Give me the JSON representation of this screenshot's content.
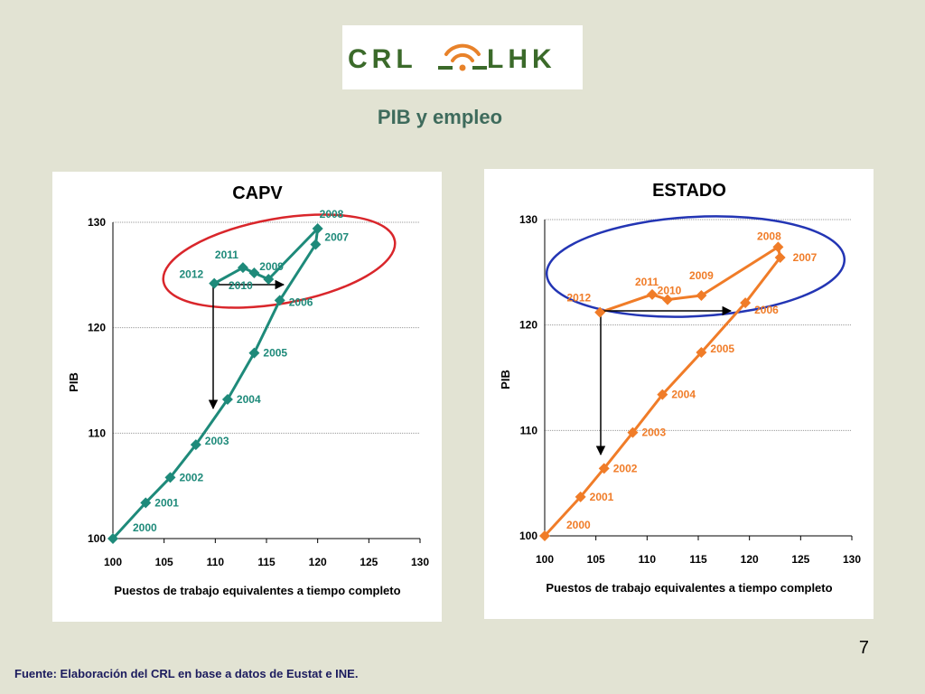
{
  "logo": {
    "text_left": "CRL",
    "text_right": "LHK",
    "colors": {
      "text": "#3b6a2a",
      "accent": "#e8822a"
    }
  },
  "slide_title": "PIB y empleo",
  "page_number": "7",
  "source_note": "Fuente: Elaboración del CRL en base a datos de Eustat e INE.",
  "chart_data": [
    {
      "type": "line",
      "title": "CAPV",
      "xlabel": "Puestos de trabajo equivalentes a tiempo completo",
      "ylabel": "PIB",
      "xlim": [
        100,
        130
      ],
      "ylim": [
        100,
        130
      ],
      "xticks": [
        "100",
        "105",
        "110",
        "115",
        "120",
        "125",
        "130"
      ],
      "yticks": [
        "100",
        "110",
        "120",
        "130"
      ],
      "grid": "horizontal",
      "color": "#1e8a7a",
      "ellipse_color": "#d9262b",
      "points": [
        {
          "label": "2000",
          "x": 100.0,
          "y": 100.0
        },
        {
          "label": "2001",
          "x": 103.2,
          "y": 103.4
        },
        {
          "label": "2002",
          "x": 105.6,
          "y": 105.8
        },
        {
          "label": "2003",
          "x": 108.1,
          "y": 108.9
        },
        {
          "label": "2004",
          "x": 111.2,
          "y": 113.2
        },
        {
          "label": "2005",
          "x": 113.8,
          "y": 117.6
        },
        {
          "label": "2006",
          "x": 116.3,
          "y": 122.6
        },
        {
          "label": "2007",
          "x": 119.8,
          "y": 127.9
        },
        {
          "label": "2008",
          "x": 120.0,
          "y": 129.4
        },
        {
          "label": "2009",
          "x": 115.2,
          "y": 124.6
        },
        {
          "label": "2010",
          "x": 113.8,
          "y": 125.2
        },
        {
          "label": "2011",
          "x": 112.7,
          "y": 125.7
        },
        {
          "label": "2012",
          "x": 109.9,
          "y": 124.2
        }
      ]
    },
    {
      "type": "line",
      "title": "ESTADO",
      "xlabel": "Puestos de trabajo equivalentes a tiempo completo",
      "ylabel": "PIB",
      "xlim": [
        100,
        130
      ],
      "ylim": [
        100,
        130
      ],
      "xticks": [
        "100",
        "105",
        "110",
        "115",
        "120",
        "125",
        "130"
      ],
      "yticks": [
        "100",
        "110",
        "120",
        "130"
      ],
      "grid": "horizontal",
      "color": "#f07c28",
      "ellipse_color": "#2335b4",
      "points": [
        {
          "label": "2000",
          "x": 100.0,
          "y": 100.0
        },
        {
          "label": "2001",
          "x": 103.5,
          "y": 103.7
        },
        {
          "label": "2002",
          "x": 105.8,
          "y": 106.4
        },
        {
          "label": "2003",
          "x": 108.6,
          "y": 109.8
        },
        {
          "label": "2004",
          "x": 111.5,
          "y": 113.4
        },
        {
          "label": "2005",
          "x": 115.3,
          "y": 117.4
        },
        {
          "label": "2006",
          "x": 119.6,
          "y": 122.1
        },
        {
          "label": "2007",
          "x": 123.0,
          "y": 126.4
        },
        {
          "label": "2008",
          "x": 122.8,
          "y": 127.4
        },
        {
          "label": "2009",
          "x": 115.3,
          "y": 122.8
        },
        {
          "label": "2010",
          "x": 112.0,
          "y": 122.4
        },
        {
          "label": "2011",
          "x": 110.5,
          "y": 122.9
        },
        {
          "label": "2012",
          "x": 105.4,
          "y": 121.2
        }
      ]
    }
  ]
}
